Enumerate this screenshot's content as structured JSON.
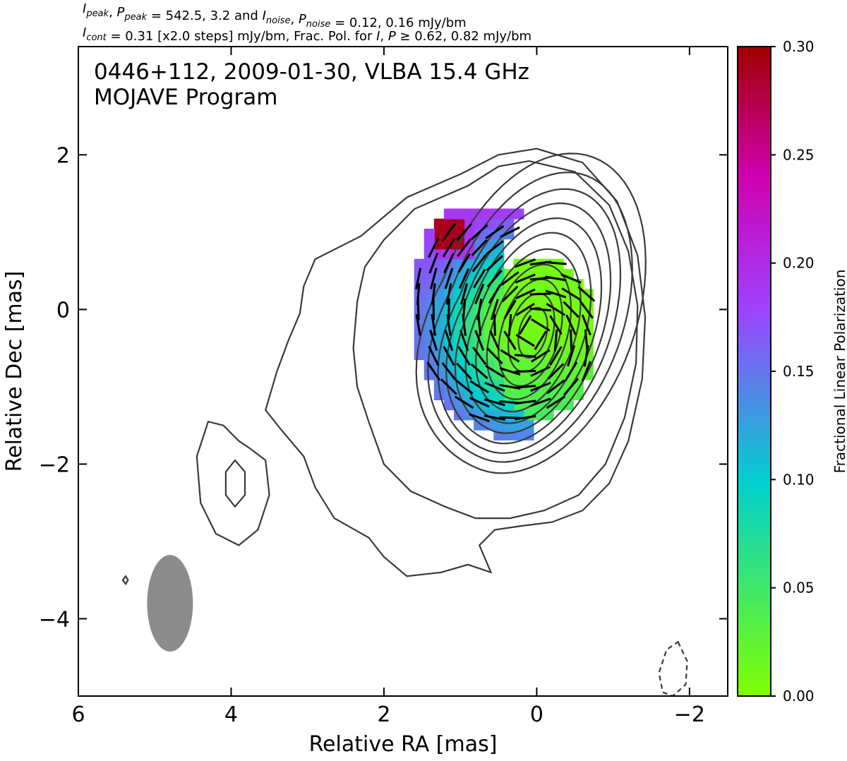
{
  "header": {
    "line1_parts": [
      {
        "t": "I",
        "sub": "peak"
      },
      {
        "t": ", "
      },
      {
        "t": "P",
        "sub": "peak"
      },
      {
        "t": " = 542.5, 3.2 and "
      },
      {
        "t": "I",
        "sub": "noise"
      },
      {
        "t": ", "
      },
      {
        "t": "P",
        "sub": "noise"
      },
      {
        "t": " = 0.12, 0.16 mJy/bm"
      }
    ],
    "line2_parts": [
      {
        "t": "I",
        "sub": "cont"
      },
      {
        "t": " = 0.31 [x2.0 steps] mJy/bm, Frac. Pol. for "
      },
      {
        "t": "I",
        "italic": true
      },
      {
        "t": ", "
      },
      {
        "t": "P",
        "italic": true
      },
      {
        "t": " ≥  0.62, 0.82 mJy/bm"
      }
    ]
  },
  "annotation": {
    "line1": "0446+112, 2009-01-30, VLBA 15.4 GHz",
    "line2": "MOJAVE Program"
  },
  "colors": {
    "contour": "#3a3a3a",
    "beam": "#8c8c8c",
    "evpa": "#000000",
    "cmap_stops": [
      "#80ff00",
      "#00d0d0",
      "#a040ff",
      "#d000b0",
      "#a00000"
    ]
  },
  "chart_data": {
    "type": "heatmap",
    "xlabel": "Relative RA [mas]",
    "ylabel": "Relative Dec [mas]",
    "xlim": [
      6,
      -2.5
    ],
    "ylim": [
      -5,
      3.4
    ],
    "xticks": [
      6,
      4,
      2,
      0,
      -2
    ],
    "yticks": [
      2,
      0,
      -2,
      -4
    ],
    "xtick_labels": [
      "6",
      "4",
      "2",
      "0",
      "−2"
    ],
    "ytick_labels": [
      "2",
      "0",
      "−2",
      "−4"
    ],
    "colorbar": {
      "label": "Fractional Linear Polarization",
      "range": [
        0.0,
        0.3
      ],
      "ticks": [
        0.0,
        0.05,
        0.1,
        0.15,
        0.2,
        0.25,
        0.3
      ],
      "tick_labels": [
        "0.00",
        "0.05",
        "0.10",
        "0.15",
        "0.20",
        "0.25",
        "0.30"
      ]
    },
    "contour_levels_mJy_per_beam": {
      "base": 0.31,
      "step_factor": 2.0
    },
    "core_position": [
      0.0,
      0.0
    ],
    "beam": {
      "center": [
        4.8,
        -3.8
      ],
      "major_axis": 1.25,
      "minor_axis": 0.6,
      "position_angle": 0
    }
  }
}
